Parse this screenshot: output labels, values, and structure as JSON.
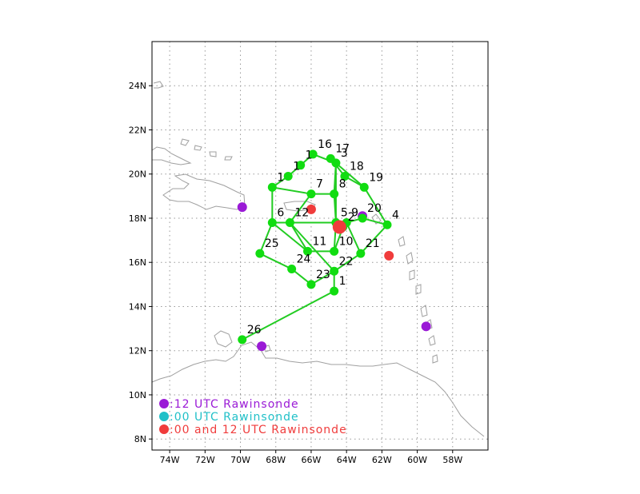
{
  "map": {
    "lon_range": [
      -75,
      -56
    ],
    "lat_range": [
      7.5,
      26
    ],
    "lon_ticks": [
      {
        "v": -74,
        "label": "74W"
      },
      {
        "v": -72,
        "label": "72W"
      },
      {
        "v": -70,
        "label": "70W"
      },
      {
        "v": -68,
        "label": "68W"
      },
      {
        "v": -66,
        "label": "66W"
      },
      {
        "v": -64,
        "label": "64W"
      },
      {
        "v": -62,
        "label": "62W"
      },
      {
        "v": -60,
        "label": "60W"
      },
      {
        "v": -58,
        "label": "58W"
      }
    ],
    "lat_ticks": [
      {
        "v": 8,
        "label": "8N"
      },
      {
        "v": 10,
        "label": "10N"
      },
      {
        "v": 12,
        "label": "12N"
      },
      {
        "v": 14,
        "label": "14N"
      },
      {
        "v": 16,
        "label": "16N"
      },
      {
        "v": 18,
        "label": "18N"
      },
      {
        "v": 20,
        "label": "20N"
      },
      {
        "v": 22,
        "label": "22N"
      },
      {
        "v": 24,
        "label": "24N"
      }
    ],
    "grid": "dotted",
    "colors": {
      "coast": "#a0a0a0",
      "track": "#22cc22",
      "dropsonde": "#11dd11",
      "raob_12": "#9a1ad6",
      "raob_00": "#20c0c8",
      "raob_both": "#f03c3c",
      "center": "#f03c3c"
    }
  },
  "dropsondes": [
    {
      "id": "1",
      "lon": -64.7,
      "lat": 14.7
    },
    {
      "id": "2",
      "lon": -64.2,
      "lat": 17.6
    },
    {
      "id": "3",
      "lon": -64.6,
      "lat": 20.5
    },
    {
      "id": "4",
      "lon": -61.7,
      "lat": 17.7
    },
    {
      "id": "5",
      "lon": -64.6,
      "lat": 17.8
    },
    {
      "id": "6",
      "lon": -68.2,
      "lat": 17.8
    },
    {
      "id": "7",
      "lon": -66.0,
      "lat": 19.1
    },
    {
      "id": "8",
      "lon": -64.7,
      "lat": 19.1
    },
    {
      "id": "9",
      "lon": -64.0,
      "lat": 17.8
    },
    {
      "id": "10",
      "lon": -64.7,
      "lat": 16.5
    },
    {
      "id": "11",
      "lon": -66.2,
      "lat": 16.5
    },
    {
      "id": "12",
      "lon": -67.2,
      "lat": 17.8
    },
    {
      "id": "13",
      "lon": -67.3,
      "lat": 19.9
    },
    {
      "id": "14",
      "lon": -66.6,
      "lat": 20.4
    },
    {
      "id": "15",
      "lon": -68.2,
      "lat": 19.4
    },
    {
      "id": "16",
      "lon": -65.9,
      "lat": 20.9
    },
    {
      "id": "17",
      "lon": -64.9,
      "lat": 20.7
    },
    {
      "id": "18",
      "lon": -64.1,
      "lat": 19.9
    },
    {
      "id": "19",
      "lon": -63.0,
      "lat": 19.4
    },
    {
      "id": "20",
      "lon": -63.1,
      "lat": 18.0
    },
    {
      "id": "21",
      "lon": -63.2,
      "lat": 16.4
    },
    {
      "id": "22",
      "lon": -64.7,
      "lat": 15.6
    },
    {
      "id": "23",
      "lon": -66.0,
      "lat": 15.0
    },
    {
      "id": "24",
      "lon": -67.1,
      "lat": 15.7
    },
    {
      "id": "25",
      "lon": -68.9,
      "lat": 16.4
    },
    {
      "id": "26",
      "lon": -69.9,
      "lat": 12.5
    }
  ],
  "label_visible": {
    "13": "1",
    "14": "1",
    "15": "1",
    "16": "16",
    "17": "17"
  },
  "track_order": [
    "26",
    "1",
    "22",
    "23",
    "24",
    "25",
    "6",
    "12",
    "5",
    "9",
    "20",
    "4",
    "19",
    "18",
    "17",
    "3",
    "16",
    "14",
    "13",
    "15",
    "7",
    "8",
    "5",
    "10",
    "11",
    "12",
    "22",
    "21",
    "4"
  ],
  "raobs": [
    {
      "type": "12",
      "lon": -69.9,
      "lat": 18.5
    },
    {
      "type": "12",
      "lon": -63.1,
      "lat": 18.1
    },
    {
      "type": "12",
      "lon": -68.8,
      "lat": 12.2
    },
    {
      "type": "12",
      "lon": -59.5,
      "lat": 13.1
    },
    {
      "type": "both",
      "lon": -66.0,
      "lat": 18.4
    },
    {
      "type": "both",
      "lon": -61.6,
      "lat": 16.3
    }
  ],
  "storm_center": {
    "lon": -64.4,
    "lat": 17.6
  },
  "legend": [
    {
      "key": "12",
      "label": ":12 UTC Rawinsonde"
    },
    {
      "key": "00",
      "label": ":00 UTC Rawinsonde"
    },
    {
      "key": "both",
      "label": ":00 and 12 UTC Rawinsonde"
    }
  ]
}
